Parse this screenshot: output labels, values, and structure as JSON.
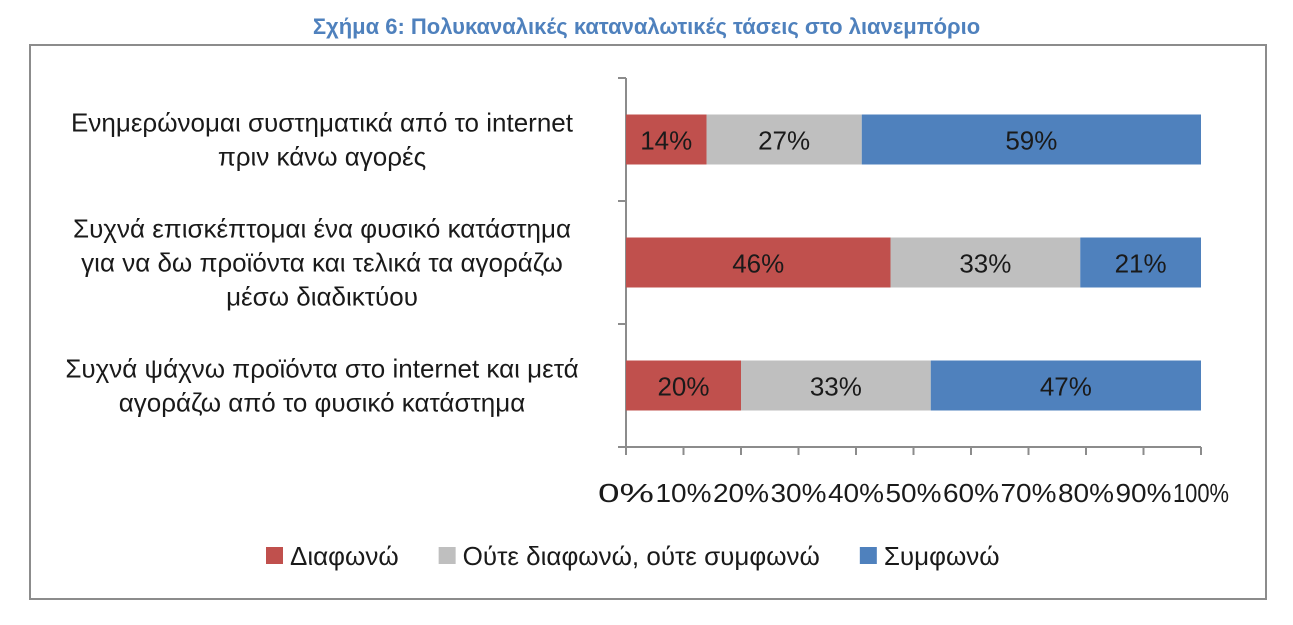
{
  "figure_title": "Σχήμα 6: Πολυκαναλικές καταναλωτικές τάσεις στο λιανεμπόριο",
  "chart_data": {
    "type": "bar",
    "orientation": "horizontal",
    "stacked": "percent",
    "categories": [
      [
        "Ενημερώνομαι συστηματικά από το internet",
        "πριν κάνω αγορές"
      ],
      [
        "Συχνά επισκέπτομαι ένα φυσικό κατάστημα",
        "για να δω προϊόντα και τελικά τα αγοράζω",
        "μέσω διαδικτύου"
      ],
      [
        "Συχνά ψάχνω προϊόντα στο internet και μετά",
        "αγοράζω από το φυσικό κατάστημα"
      ]
    ],
    "series": [
      {
        "name": "Διαφωνώ",
        "color": "#c0504d",
        "values": [
          14,
          46,
          20
        ],
        "labels": [
          "14%",
          "46%",
          "20%"
        ]
      },
      {
        "name": "Ούτε διαφωνώ, ούτε συμφωνώ",
        "color": "#bfbfbf",
        "values": [
          27,
          33,
          33
        ],
        "labels": [
          "27%",
          "33%",
          "33%"
        ]
      },
      {
        "name": "Συμφωνώ",
        "color": "#4f81bd",
        "values": [
          59,
          21,
          47
        ],
        "labels": [
          "59%",
          "21%",
          "47%"
        ]
      }
    ],
    "xlim": [
      0,
      100
    ],
    "x_ticks": [
      "0%",
      "10%",
      "20%",
      "30%",
      "40%",
      "50%",
      "60%",
      "70%",
      "80%",
      "90%",
      "100%"
    ],
    "grid": false,
    "legend_position": "bottom"
  }
}
